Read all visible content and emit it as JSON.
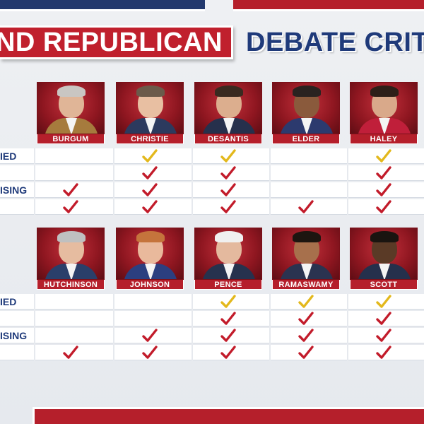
{
  "header": {
    "title_red": "ND REPUBLICAN",
    "title_blue": "DEBATE CRIT"
  },
  "row_labels": [
    "IED",
    "",
    "ISING",
    ""
  ],
  "groups": [
    {
      "candidates": [
        {
          "name": "BURGUM",
          "checks": [
            false,
            false,
            true,
            true
          ],
          "first_color": "red"
        },
        {
          "name": "CHRISTIE",
          "checks": [
            true,
            true,
            true,
            true
          ],
          "first_color": "yellow"
        },
        {
          "name": "DESANTIS",
          "checks": [
            true,
            true,
            true,
            true
          ],
          "first_color": "yellow"
        },
        {
          "name": "ELDER",
          "checks": [
            false,
            false,
            false,
            true
          ],
          "first_color": "red"
        },
        {
          "name": "HALEY",
          "checks": [
            true,
            true,
            true,
            true
          ],
          "first_color": "yellow"
        }
      ]
    },
    {
      "candidates": [
        {
          "name": "HUTCHINSON",
          "checks": [
            false,
            false,
            false,
            true
          ],
          "first_color": "red"
        },
        {
          "name": "JOHNSON",
          "checks": [
            false,
            false,
            true,
            true
          ],
          "first_color": "red"
        },
        {
          "name": "PENCE",
          "checks": [
            true,
            true,
            true,
            true
          ],
          "first_color": "yellow"
        },
        {
          "name": "RAMASWAMY",
          "checks": [
            true,
            true,
            true,
            true
          ],
          "first_color": "yellow"
        },
        {
          "name": "SCOTT",
          "checks": [
            true,
            true,
            true,
            true
          ],
          "first_color": "yellow"
        }
      ]
    }
  ],
  "colors": {
    "brand_red": "#c0202d",
    "brand_blue": "#1f3a7a",
    "check_red": "#c21b2a",
    "check_yellow": "#e3b81c"
  }
}
